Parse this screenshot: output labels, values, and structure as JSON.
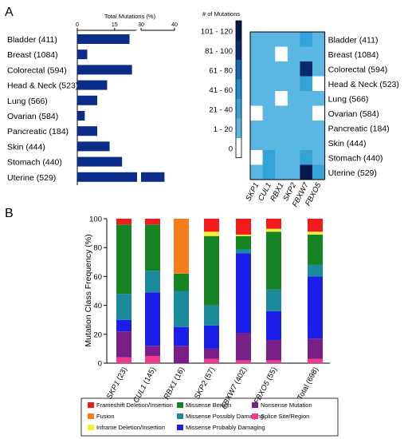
{
  "panels": {
    "a": "A",
    "b": "B"
  },
  "chart_data": [
    {
      "type": "bar",
      "orientation": "horizontal",
      "xlabel": "Total Mutations (%)",
      "xlim": [
        0,
        40
      ],
      "ticks": [
        0,
        15,
        30,
        40
      ],
      "axis_break": "between 25 and 30",
      "bar_color": "#0b2c88",
      "categories": [
        "Bladder (411)",
        "Breast (1084)",
        "Colorectal (594)",
        "Head & Neck (523)",
        "Lung (566)",
        "Ovarian (584)",
        "Pancreatic (184)",
        "Skin (444)",
        "Stomach (440)",
        "Uterine (529)"
      ],
      "values": [
        21,
        4,
        22,
        12,
        8,
        3,
        8,
        13,
        18,
        37
      ]
    },
    {
      "type": "heatmap",
      "rows": [
        "Bladder (411)",
        "Breast (1084)",
        "Colorectal (594)",
        "Head & Neck (523)",
        "Lung (566)",
        "Ovarian (584)",
        "Pancreatic (184)",
        "Skin (444)",
        "Stomach (440)",
        "Uterine (529)"
      ],
      "columns": [
        "SKP1",
        "CUL1",
        "RBX1",
        "SKP2",
        "FBXW7",
        "FBXO5"
      ],
      "legend_title": "# of Mutations",
      "legend_bins": [
        "101 - 120",
        "81 - 100",
        "61 - 80",
        "41 - 60",
        "21 - 40",
        "1 - 20",
        "0"
      ],
      "bin_colors": [
        "#06184d",
        "#0a2a70",
        "#1565b5",
        "#1f8acd",
        "#35a3d8",
        "#5ab7e3",
        "#ffffff"
      ],
      "values": [
        [
          20,
          20,
          20,
          20,
          40,
          20
        ],
        [
          20,
          20,
          0,
          20,
          20,
          20
        ],
        [
          20,
          20,
          20,
          20,
          100,
          20
        ],
        [
          20,
          20,
          20,
          20,
          40,
          0
        ],
        [
          20,
          20,
          0,
          20,
          20,
          20
        ],
        [
          0,
          20,
          20,
          20,
          20,
          0
        ],
        [
          20,
          20,
          20,
          20,
          20,
          20
        ],
        [
          20,
          20,
          20,
          20,
          20,
          20
        ],
        [
          0,
          40,
          20,
          20,
          40,
          20
        ],
        [
          20,
          40,
          20,
          20,
          110,
          40
        ]
      ]
    },
    {
      "type": "bar",
      "stacked": true,
      "ylabel": "Mutation Class Frequency (%)",
      "ylim": [
        0,
        100
      ],
      "yticks": [
        0,
        20,
        40,
        60,
        80,
        100
      ],
      "categories": [
        "SKP1 (23)",
        "CUL1 (145)",
        "RBX1 (16)",
        "SKP2 (57)",
        "FBXW7 (402)",
        "FBXO5 (55)",
        "Total (698)"
      ],
      "series": [
        {
          "name": "Splice Site/Region",
          "color": "#f0398f",
          "values": [
            4,
            5,
            0,
            3,
            2,
            2,
            3
          ]
        },
        {
          "name": "Nonsense Mutation",
          "color": "#7b1f88",
          "values": [
            18,
            7,
            12,
            7,
            19,
            14,
            14
          ]
        },
        {
          "name": "Missense Probably Damaging",
          "color": "#1b1ee8",
          "values": [
            8,
            37,
            13,
            16,
            55,
            20,
            43
          ]
        },
        {
          "name": "Missense Possibly Damaging",
          "color": "#1a8a9c",
          "values": [
            18,
            15,
            25,
            14,
            3,
            15,
            8
          ]
        },
        {
          "name": "Missense Benign",
          "color": "#178424",
          "values": [
            48,
            32,
            12,
            48,
            9,
            40,
            21
          ]
        },
        {
          "name": "Fusion",
          "color": "#f57d1e",
          "values": [
            0,
            0,
            38,
            0,
            0,
            0,
            0
          ]
        },
        {
          "name": "Inframe Deletion/Insertion",
          "color": "#f1ef3a",
          "values": [
            0,
            0,
            0,
            3,
            1,
            2,
            2
          ]
        },
        {
          "name": "Frameshift Deletion/Insertion",
          "color": "#f21b1b",
          "values": [
            4,
            4,
            0,
            9,
            11,
            7,
            9
          ]
        }
      ],
      "legend": {
        "placement": "bottom",
        "order": [
          "Frameshift Deletion/Insertion",
          "Missense Benign",
          "Nonsense Mutation",
          "Fusion",
          "Missense Possibly Damaging",
          "Splice Site/Region",
          "Inframe Deletion/Insertion",
          "Missense Probably Damaging"
        ]
      }
    }
  ]
}
